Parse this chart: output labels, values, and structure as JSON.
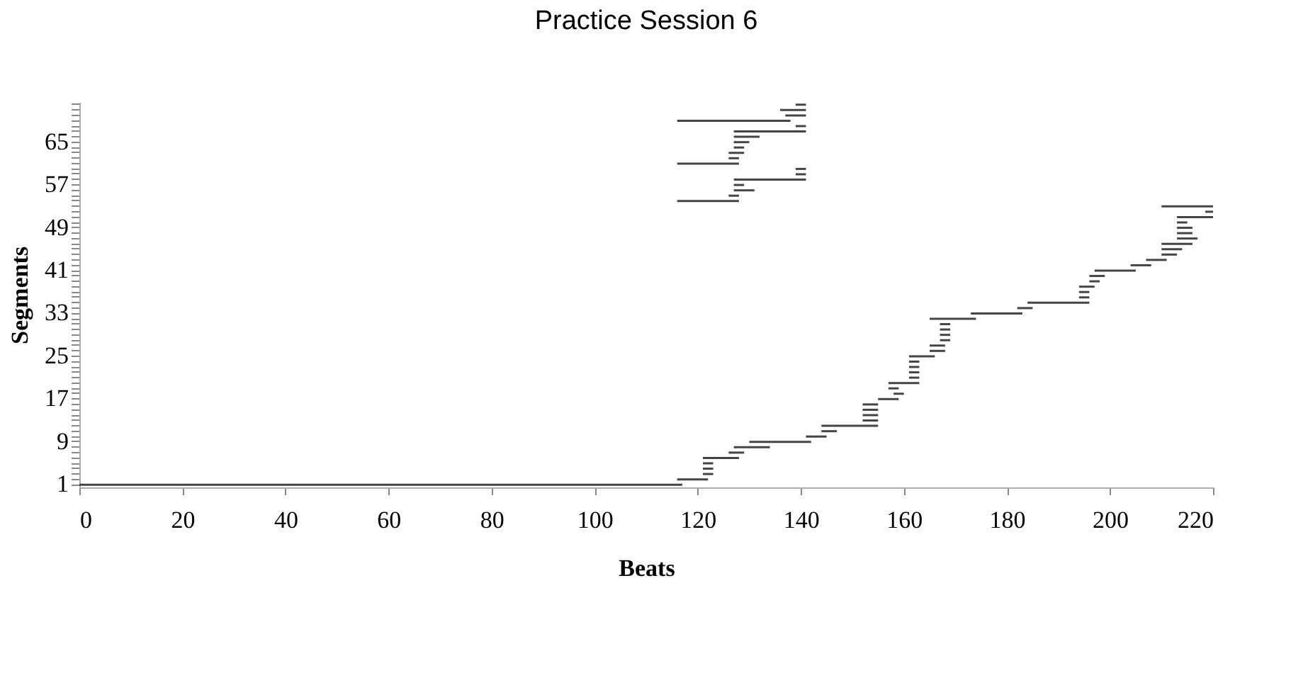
{
  "chart_data": {
    "type": "bar",
    "orientation": "horizontal",
    "title": "Practice Session 6",
    "xlabel": "Beats",
    "ylabel": "Segments",
    "categories": [
      null,
      null,
      null,
      null,
      null,
      null,
      null,
      "65",
      null,
      null,
      null,
      null,
      null,
      null,
      null,
      "57",
      null,
      null,
      null,
      null,
      null,
      null,
      null,
      "49",
      null,
      null,
      null,
      null,
      null,
      null,
      null,
      "41",
      null,
      null,
      null,
      null,
      null,
      null,
      null,
      "33",
      null,
      null,
      null,
      null,
      null,
      null,
      null,
      "25",
      null,
      null,
      null,
      null,
      null,
      null,
      null,
      "17",
      null,
      null,
      null,
      null,
      null,
      null,
      null,
      "9",
      null,
      null,
      null,
      null,
      null,
      null,
      null,
      "1"
    ],
    "base": [
      139,
      136,
      137,
      116,
      139,
      127,
      127,
      127,
      127,
      126,
      126,
      116,
      139,
      139,
      127,
      127,
      127,
      126,
      116,
      210,
      218.5,
      213,
      213,
      213,
      213,
      213,
      210,
      210,
      210,
      207,
      204,
      197,
      196,
      196,
      194,
      194,
      194,
      184,
      182,
      173,
      165,
      167,
      167,
      167,
      167,
      165,
      165,
      161,
      161,
      161,
      161,
      161,
      157,
      157,
      158,
      155,
      152,
      152,
      152,
      152,
      144,
      144,
      141,
      130,
      127,
      126,
      121,
      121,
      121,
      121,
      116,
      0
    ],
    "values": [
      2,
      5,
      4,
      22,
      2,
      14,
      5,
      3,
      2,
      3,
      2,
      12,
      2,
      2,
      14,
      2,
      4,
      2,
      12,
      10,
      1.5,
      7,
      2,
      3,
      3,
      4,
      6,
      4,
      3,
      4,
      4,
      8,
      3,
      2,
      3,
      2,
      2,
      12,
      3,
      10,
      9,
      2,
      2,
      2,
      2,
      3,
      3,
      5,
      2,
      2,
      2,
      2,
      6,
      2,
      2,
      4,
      3,
      3,
      3,
      3,
      11,
      3,
      4,
      12,
      7,
      3,
      7,
      2,
      2,
      2,
      6,
      117
    ],
    "color": "#444444",
    "xlim": [
      0,
      220
    ],
    "xticks": [
      0,
      20,
      40,
      60,
      80,
      100,
      120,
      140,
      160,
      180,
      200,
      220
    ],
    "grid": false
  }
}
